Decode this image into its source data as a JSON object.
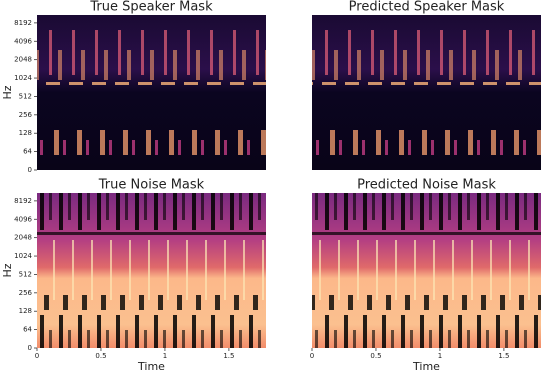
{
  "chart_data": [
    {
      "type": "spectrogram",
      "title": "True Speaker Mask",
      "ylabel": "Hz",
      "yscale": "symlog",
      "linthresh": 64,
      "logbase": 2,
      "ylim": [
        0,
        11025
      ],
      "yticks": [
        0,
        64,
        128,
        256,
        512,
        1024,
        2048,
        4096,
        8192
      ],
      "xlim": [
        0,
        1.79
      ]
    },
    {
      "type": "spectrogram",
      "title": "Predicted Speaker Mask",
      "yscale": "symlog",
      "linthresh": 64,
      "logbase": 2,
      "ylim": [
        0,
        11025
      ],
      "xlim": [
        0,
        1.79
      ]
    },
    {
      "type": "spectrogram",
      "title": "True Noise Mask",
      "ylabel": "Hz",
      "xlabel": "Time",
      "yscale": "symlog",
      "linthresh": 64,
      "logbase": 2,
      "ylim": [
        0,
        11025
      ],
      "yticks": [
        0,
        64,
        128,
        256,
        512,
        1024,
        2048,
        4096,
        8192
      ],
      "xlim": [
        0,
        1.79
      ],
      "xticks": [
        0,
        0.5,
        1,
        1.5
      ]
    },
    {
      "type": "spectrogram",
      "title": "Predicted Noise Mask",
      "xlabel": "Time",
      "yscale": "symlog",
      "linthresh": 64,
      "logbase": 2,
      "ylim": [
        0,
        11025
      ],
      "xlim": [
        0,
        1.79
      ],
      "xticks": [
        0,
        0.5,
        1,
        1.5
      ]
    }
  ]
}
